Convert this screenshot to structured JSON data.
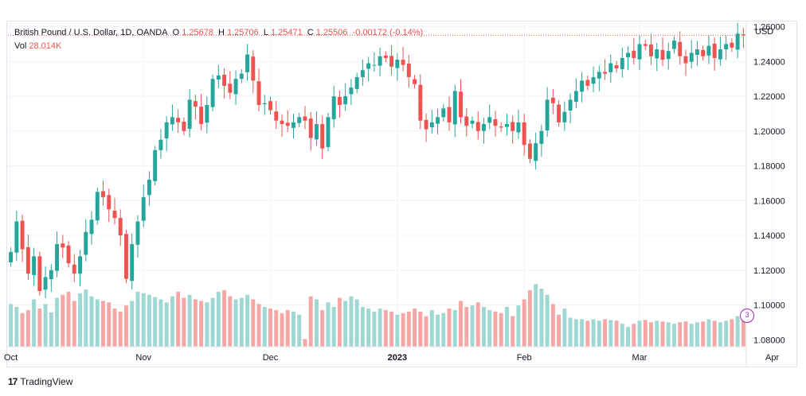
{
  "legend": {
    "symbol": "British Pound / U.S. Dollar, 1D, OANDA",
    "o_label": "O",
    "o_value": "1.25678",
    "h_label": "H",
    "h_value": "1.25706",
    "l_label": "L",
    "l_value": "1.25471",
    "c_label": "C",
    "c_value": "1.25506",
    "change": "-0.00172 (-0.14%)",
    "vol_label": "Vol",
    "vol_value": "28.014K"
  },
  "currency_label": "USD",
  "brand": {
    "logo": "17",
    "name": "TradingView"
  },
  "event_marker": "3",
  "colors": {
    "up": "#26a69a",
    "down": "#ef5350",
    "vol_up": "#9fd8d2",
    "vol_down": "#f5a7a5",
    "grid": "#f0f3fa",
    "last_price_line": "#ef5350",
    "event": "#9c27b0"
  },
  "chart_data": {
    "type": "candlestick",
    "ylim": [
      1.076,
      1.263
    ],
    "y_ticks": [
      "1.26000",
      "1.24000",
      "1.22000",
      "1.20000",
      "1.18000",
      "1.16000",
      "1.14000",
      "1.12000",
      "1.10000",
      "1.08000"
    ],
    "y_tick_values": [
      1.26,
      1.24,
      1.22,
      1.2,
      1.18,
      1.16,
      1.14,
      1.12,
      1.1,
      1.08
    ],
    "x_ticks": [
      {
        "label": "Oct",
        "index": 0
      },
      {
        "label": "Nov",
        "index": 23
      },
      {
        "label": "Dec",
        "index": 45
      },
      {
        "label": "2023",
        "index": 67
      },
      {
        "label": "Feb",
        "index": 89
      },
      {
        "label": "Mar",
        "index": 109
      },
      {
        "label": "Apr",
        "index": 132
      }
    ],
    "last_price": 1.25506,
    "closes": [
      1.1305,
      1.148,
      1.132,
      1.118,
      1.128,
      1.108,
      1.116,
      1.12,
      1.135,
      1.133,
      1.124,
      1.118,
      1.128,
      1.142,
      1.149,
      1.165,
      1.162,
      1.155,
      1.15,
      1.14,
      1.115,
      1.135,
      1.148,
      1.162,
      1.172,
      1.189,
      1.195,
      1.205,
      1.208,
      1.205,
      1.2,
      1.218,
      1.214,
      1.204,
      1.215,
      1.23,
      1.232,
      1.226,
      1.222,
      1.23,
      1.233,
      1.244,
      1.229,
      1.215,
      1.216,
      1.212,
      1.206,
      1.204,
      1.203,
      1.205,
      1.208,
      1.206,
      1.196,
      1.204,
      1.19,
      1.208,
      1.22,
      1.215,
      1.22,
      1.225,
      1.231,
      1.235,
      1.239,
      1.238,
      1.243,
      1.242,
      1.237,
      1.241,
      1.238,
      1.231,
      1.227,
      1.206,
      1.201,
      1.205,
      1.208,
      1.213,
      1.205,
      1.223,
      1.208,
      1.203,
      1.206,
      1.2,
      1.204,
      1.208,
      1.203,
      1.202,
      1.204,
      1.2,
      1.205,
      1.192,
      1.184,
      1.193,
      1.2,
      1.218,
      1.216,
      1.205,
      1.211,
      1.218,
      1.223,
      1.229,
      1.226,
      1.231,
      1.234,
      1.233,
      1.239,
      1.236,
      1.242,
      1.245,
      1.242,
      1.25,
      1.249,
      1.243,
      1.247,
      1.241,
      1.246,
      1.252,
      1.243,
      1.239,
      1.245,
      1.247,
      1.243,
      1.249,
      1.242,
      1.247,
      1.25,
      1.248,
      1.256,
      1.2551
    ],
    "volume_pct": [
      56,
      52,
      44,
      48,
      62,
      50,
      56,
      45,
      64,
      68,
      72,
      60,
      70,
      75,
      66,
      62,
      60,
      58,
      50,
      46,
      54,
      60,
      72,
      70,
      68,
      65,
      62,
      58,
      66,
      72,
      64,
      68,
      62,
      60,
      58,
      64,
      72,
      74,
      66,
      62,
      64,
      68,
      62,
      56,
      52,
      50,
      48,
      44,
      48,
      46,
      42,
      10,
      66,
      62,
      48,
      58,
      52,
      64,
      60,
      66,
      62,
      52,
      50,
      46,
      50,
      48,
      46,
      42,
      44,
      46,
      50,
      46,
      40,
      48,
      42,
      44,
      50,
      48,
      60,
      52,
      54,
      58,
      52,
      48,
      46,
      44,
      52,
      40,
      54,
      62,
      74,
      82,
      76,
      68,
      56,
      42,
      50,
      38,
      36,
      36,
      34,
      36,
      34,
      36,
      35,
      34,
      30,
      26,
      30,
      34,
      35,
      32,
      34,
      33,
      32,
      30,
      32,
      33,
      30,
      32,
      33,
      36,
      34,
      32,
      34,
      36,
      40,
      38
    ]
  }
}
